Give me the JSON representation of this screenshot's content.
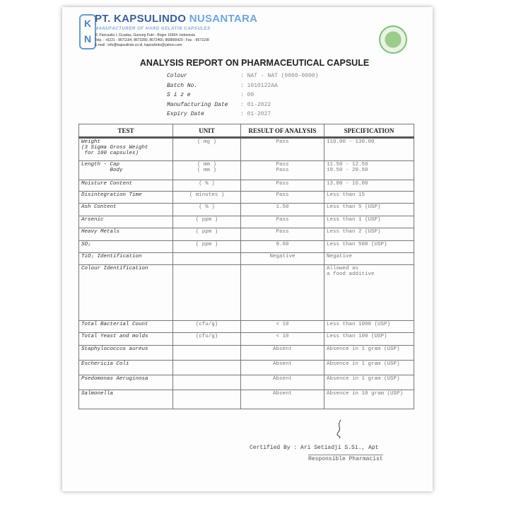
{
  "header": {
    "company": "PT. KAPSULINDO",
    "company2": "NUSANTARA",
    "tagline": "MANUFACTURER OF HARD GELATIN CAPSULES",
    "address": "Jl. Pancasila I, Cicadas, Gunung Putri - Bogor 16964 -Indonesia",
    "phone": "Telp. : +6221 - 8671164, 8673280, 8672460, 868800429 ; Fax. : 8671108",
    "email": "E-mail : info@kapsulindo.co.id, kapsulindo@yahoo.com",
    "logo_letters": "KN",
    "seal": "halal-seal"
  },
  "title": "ANALYSIS REPORT ON PHARMACEUTICAL CAPSULE",
  "meta": [
    {
      "label": "Colour",
      "value": ": NAT - NAT  (0000-0000)"
    },
    {
      "label": "Batch No.",
      "value": ": 1010122AA"
    },
    {
      "label": "S i z e",
      "value": ": 00"
    },
    {
      "label": "Manufacturing Date",
      "value": ": 01-2022"
    },
    {
      "label": "Expiry Date",
      "value": ": 01-2027"
    }
  ],
  "table": {
    "headers": [
      "TEST",
      "UNIT",
      "RESULT OF ANALYSIS",
      "SPECIFICATION"
    ],
    "rows": [
      {
        "test": "Weight\n(3 Sigma Gross Weight\n for 100 capsules)",
        "unit": "( mg )",
        "result": "Pass",
        "spec": "110.00 - 130.00"
      },
      {
        "test": "Length - Cap\n         Body",
        "unit": "( mm )\n( mm )",
        "result": "Pass\nPass",
        "spec": "11.50 - 12.50\n19.50 - 20.50"
      },
      {
        "test": "Moisture Content",
        "unit": "( % )",
        "result": "Pass",
        "spec": "13.00 - 16.00"
      },
      {
        "test": "Disintegration Time",
        "unit": "( minutes )",
        "result": "Pass",
        "spec": "Less than 15"
      },
      {
        "test": "Ash Content",
        "unit": "( % )",
        "result": "1.50",
        "spec": "Less than 5 (USP)"
      },
      {
        "test": "Arsenic",
        "unit": "( ppm )",
        "result": "Pass",
        "spec": "Less than 1 (USP)"
      },
      {
        "test": "Heavy Metals",
        "unit": "( ppm )",
        "result": "Pass",
        "spec": "Less than 2 (USP)"
      },
      {
        "test": "SO₂",
        "unit": "( ppm )",
        "result": "9.60",
        "spec": "Less than 500 (USP)"
      },
      {
        "test": "TiO₂ Identification",
        "unit": "",
        "result": "Negative",
        "spec": "Negative"
      },
      {
        "test": "Colour Identification",
        "unit": "",
        "result": "",
        "spec": "Allowed as\na food additive"
      },
      {
        "test": "Total Bacterial Count",
        "unit": "(cfu/g)",
        "result": "< 10",
        "spec": "Less than 1000 (USP)"
      },
      {
        "test": "Total Yeast and molds",
        "unit": "(cfu/g)",
        "result": "< 10",
        "spec": "Less than 100 (USP)"
      },
      {
        "test": "Staphylococcus aureus",
        "unit": "",
        "result": "Absent",
        "spec": "Absence in 1 gram (USP)"
      },
      {
        "test": "Eschericia Coli",
        "unit": "",
        "result": "Absent",
        "spec": "Absence in 1 gram (USP)"
      },
      {
        "test": "Psedomonas Aeruginosa",
        "unit": "",
        "result": "Absent",
        "spec": "Absence in 1 gram (USP)"
      },
      {
        "test": "Salmonella",
        "unit": "",
        "result": "Absent",
        "spec": "Absence in 10 gram (USP)"
      }
    ]
  },
  "footer": {
    "certified": "Certified By :  Ari Setiadji S.Si., Apt",
    "role": "Responsible Pharmacist"
  }
}
